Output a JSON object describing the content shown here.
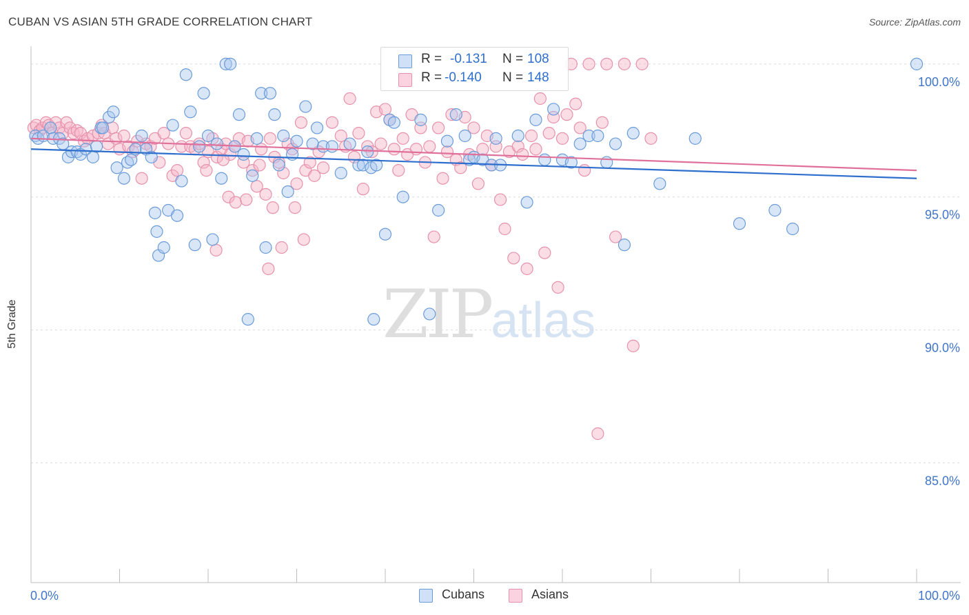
{
  "title": "CUBAN VS ASIAN 5TH GRADE CORRELATION CHART",
  "source": "Source: ZipAtlas.com",
  "legend_stats": [
    {
      "r_label": "R =",
      "r_value": "-0.131",
      "n_label": "N =",
      "n_value": "108",
      "color": "#a8c8f0"
    },
    {
      "r_label": "R =",
      "r_value": "-0.140",
      "n_label": "N =",
      "n_value": "148",
      "color": "#f7b3c8"
    }
  ],
  "watermark": {
    "zip": "ZIP",
    "atlas": "atlas"
  },
  "colors": {
    "cuban_fill": "#a8c8f0",
    "cuban_stroke": "#6a9bd8",
    "cuban_line": "#2e6fce",
    "asian_fill": "#f7b3c8",
    "asian_stroke": "#e691ab",
    "asian_line": "#e0709a",
    "axis_text": "#3f74c9",
    "grid": "#dcdcdc"
  },
  "chart_data": {
    "type": "scatter",
    "title": "CUBAN VS ASIAN 5TH GRADE CORRELATION CHART",
    "xlabel": "",
    "ylabel": "5th Grade",
    "xlim": [
      0,
      100
    ],
    "ylim": [
      80.5,
      100.8
    ],
    "x_tick_labels": [
      "0.0%",
      "100.0%"
    ],
    "y_ticks": [
      85,
      90,
      95,
      100
    ],
    "y_tick_labels": [
      "85.0%",
      "90.0%",
      "95.0%",
      "100.0%"
    ],
    "grid": true,
    "legend_position": "bottom-center",
    "series": [
      {
        "name": "Cubans",
        "trend": {
          "x": [
            0,
            100
          ],
          "y": [
            96.8,
            95.7
          ]
        },
        "points": [
          [
            0.5,
            97.3
          ],
          [
            0.8,
            97.2
          ],
          [
            1.4,
            97.3
          ],
          [
            2.2,
            97.6
          ],
          [
            2.5,
            97.2
          ],
          [
            3.2,
            97.2
          ],
          [
            3.6,
            97.0
          ],
          [
            4.2,
            96.5
          ],
          [
            4.6,
            96.7
          ],
          [
            5.2,
            96.7
          ],
          [
            5.6,
            96.6
          ],
          [
            6.2,
            96.8
          ],
          [
            7.0,
            96.5
          ],
          [
            7.4,
            96.9
          ],
          [
            7.9,
            97.6
          ],
          [
            8.1,
            97.6
          ],
          [
            8.8,
            98.0
          ],
          [
            9.3,
            98.2
          ],
          [
            9.7,
            96.1
          ],
          [
            10.5,
            95.7
          ],
          [
            10.9,
            96.3
          ],
          [
            11.3,
            96.4
          ],
          [
            11.8,
            96.8
          ],
          [
            12.5,
            97.3
          ],
          [
            13.0,
            96.8
          ],
          [
            13.6,
            96.5
          ],
          [
            14.0,
            94.4
          ],
          [
            14.2,
            93.7
          ],
          [
            14.4,
            92.8
          ],
          [
            15.0,
            93.1
          ],
          [
            15.5,
            94.5
          ],
          [
            16.0,
            97.7
          ],
          [
            16.5,
            94.3
          ],
          [
            17.0,
            95.6
          ],
          [
            17.5,
            99.6
          ],
          [
            18.0,
            98.2
          ],
          [
            18.5,
            93.2
          ],
          [
            19.0,
            96.9
          ],
          [
            19.5,
            98.9
          ],
          [
            20.0,
            97.3
          ],
          [
            20.5,
            93.4
          ],
          [
            21.0,
            97.0
          ],
          [
            21.5,
            95.7
          ],
          [
            22.0,
            100.0
          ],
          [
            22.5,
            100.0
          ],
          [
            23.0,
            96.9
          ],
          [
            23.5,
            98.1
          ],
          [
            24.0,
            96.6
          ],
          [
            24.5,
            90.4
          ],
          [
            25.0,
            95.8
          ],
          [
            25.5,
            97.2
          ],
          [
            26.0,
            98.9
          ],
          [
            26.5,
            93.1
          ],
          [
            27.0,
            98.9
          ],
          [
            27.5,
            98.1
          ],
          [
            28.0,
            96.2
          ],
          [
            28.5,
            97.3
          ],
          [
            29.0,
            95.2
          ],
          [
            29.5,
            96.6
          ],
          [
            30.0,
            97.1
          ],
          [
            31.0,
            98.4
          ],
          [
            31.8,
            97.0
          ],
          [
            32.3,
            97.6
          ],
          [
            33.0,
            96.9
          ],
          [
            34.0,
            96.9
          ],
          [
            35.0,
            95.9
          ],
          [
            36.0,
            97.0
          ],
          [
            37.0,
            96.2
          ],
          [
            37.5,
            96.2
          ],
          [
            38.0,
            96.7
          ],
          [
            38.4,
            96.1
          ],
          [
            38.7,
            90.4
          ],
          [
            39.0,
            96.2
          ],
          [
            40.0,
            93.6
          ],
          [
            40.5,
            97.9
          ],
          [
            41.0,
            97.8
          ],
          [
            42.0,
            95.0
          ],
          [
            44.0,
            97.9
          ],
          [
            45.0,
            90.6
          ],
          [
            46.0,
            94.5
          ],
          [
            47.0,
            97.1
          ],
          [
            48.0,
            98.1
          ],
          [
            49.0,
            97.3
          ],
          [
            49.5,
            96.4
          ],
          [
            50.0,
            96.5
          ],
          [
            51.0,
            96.4
          ],
          [
            52.0,
            96.2
          ],
          [
            52.5,
            97.2
          ],
          [
            53.0,
            96.2
          ],
          [
            55.0,
            97.3
          ],
          [
            56.0,
            94.8
          ],
          [
            57.0,
            97.9
          ],
          [
            58.0,
            96.4
          ],
          [
            59.0,
            98.3
          ],
          [
            60.0,
            96.4
          ],
          [
            61.0,
            96.3
          ],
          [
            62.0,
            97.0
          ],
          [
            63.0,
            97.3
          ],
          [
            64.0,
            97.3
          ],
          [
            65.0,
            96.3
          ],
          [
            66.0,
            97.0
          ],
          [
            67.0,
            93.2
          ],
          [
            68.0,
            97.4
          ],
          [
            71.0,
            95.5
          ],
          [
            75.0,
            97.2
          ],
          [
            80.0,
            94.0
          ],
          [
            84.0,
            94.5
          ],
          [
            86.0,
            93.8
          ],
          [
            100.0,
            100.0
          ]
        ]
      },
      {
        "name": "Asians",
        "trend": {
          "x": [
            0,
            100
          ],
          "y": [
            97.2,
            96.0
          ]
        },
        "points": [
          [
            0.3,
            97.6
          ],
          [
            0.6,
            97.7
          ],
          [
            1.0,
            97.5
          ],
          [
            1.3,
            97.6
          ],
          [
            1.7,
            97.8
          ],
          [
            2.0,
            97.7
          ],
          [
            2.4,
            97.4
          ],
          [
            2.8,
            97.8
          ],
          [
            3.2,
            97.6
          ],
          [
            3.6,
            97.4
          ],
          [
            4.0,
            97.8
          ],
          [
            4.4,
            97.6
          ],
          [
            4.8,
            97.4
          ],
          [
            5.2,
            97.5
          ],
          [
            5.6,
            97.4
          ],
          [
            6.0,
            97.1
          ],
          [
            6.4,
            97.2
          ],
          [
            7.0,
            97.3
          ],
          [
            7.6,
            97.4
          ],
          [
            8.0,
            97.7
          ],
          [
            8.3,
            97.4
          ],
          [
            8.7,
            97.0
          ],
          [
            9.2,
            97.6
          ],
          [
            9.6,
            97.2
          ],
          [
            10.0,
            96.8
          ],
          [
            10.5,
            97.3
          ],
          [
            11.0,
            96.9
          ],
          [
            11.5,
            96.7
          ],
          [
            12.0,
            97.1
          ],
          [
            12.5,
            95.7
          ],
          [
            13.0,
            97.0
          ],
          [
            13.5,
            96.9
          ],
          [
            14.0,
            97.2
          ],
          [
            14.5,
            96.3
          ],
          [
            15.0,
            97.4
          ],
          [
            15.5,
            97.0
          ],
          [
            16.0,
            95.8
          ],
          [
            16.5,
            96.0
          ],
          [
            17.0,
            96.9
          ],
          [
            17.5,
            97.4
          ],
          [
            18.0,
            96.9
          ],
          [
            18.5,
            96.8
          ],
          [
            19.0,
            97.0
          ],
          [
            19.5,
            96.3
          ],
          [
            20.0,
            96.7
          ],
          [
            20.5,
            97.2
          ],
          [
            21.0,
            96.5
          ],
          [
            21.5,
            96.8
          ],
          [
            22.0,
            97.0
          ],
          [
            22.5,
            96.6
          ],
          [
            23.0,
            96.9
          ],
          [
            23.5,
            97.2
          ],
          [
            24.0,
            96.3
          ],
          [
            24.5,
            97.1
          ],
          [
            25.0,
            96.0
          ],
          [
            25.5,
            95.4
          ],
          [
            26.0,
            96.8
          ],
          [
            26.5,
            95.1
          ],
          [
            27.0,
            97.2
          ],
          [
            27.5,
            96.5
          ],
          [
            28.0,
            96.3
          ],
          [
            28.5,
            95.9
          ],
          [
            29.0,
            97.0
          ],
          [
            29.5,
            96.8
          ],
          [
            30.0,
            95.5
          ],
          [
            30.5,
            97.8
          ],
          [
            31.0,
            96.0
          ],
          [
            31.5,
            96.3
          ],
          [
            32.0,
            95.8
          ],
          [
            32.5,
            96.7
          ],
          [
            33.0,
            96.1
          ],
          [
            34.0,
            97.8
          ],
          [
            35.0,
            97.3
          ],
          [
            35.5,
            96.9
          ],
          [
            36.0,
            98.7
          ],
          [
            36.5,
            96.5
          ],
          [
            37.0,
            97.4
          ],
          [
            37.5,
            95.3
          ],
          [
            38.0,
            96.9
          ],
          [
            38.5,
            96.7
          ],
          [
            39.0,
            98.2
          ],
          [
            39.5,
            97.0
          ],
          [
            40.0,
            98.3
          ],
          [
            40.5,
            97.9
          ],
          [
            41.0,
            96.8
          ],
          [
            41.5,
            96.0
          ],
          [
            42.0,
            97.2
          ],
          [
            42.5,
            96.6
          ],
          [
            43.0,
            98.1
          ],
          [
            43.5,
            96.8
          ],
          [
            44.0,
            97.6
          ],
          [
            44.5,
            96.3
          ],
          [
            45.0,
            96.9
          ],
          [
            45.5,
            93.5
          ],
          [
            46.0,
            97.6
          ],
          [
            46.5,
            95.7
          ],
          [
            47.0,
            96.7
          ],
          [
            47.5,
            98.1
          ],
          [
            48.0,
            96.4
          ],
          [
            48.5,
            96.1
          ],
          [
            49.0,
            98.0
          ],
          [
            49.5,
            96.6
          ],
          [
            50.0,
            97.6
          ],
          [
            50.5,
            95.5
          ],
          [
            51.0,
            96.8
          ],
          [
            51.5,
            97.3
          ],
          [
            52.0,
            96.2
          ],
          [
            52.5,
            96.9
          ],
          [
            53.0,
            94.9
          ],
          [
            53.5,
            93.8
          ],
          [
            54.0,
            96.7
          ],
          [
            54.5,
            92.7
          ],
          [
            55.0,
            96.9
          ],
          [
            55.5,
            96.6
          ],
          [
            56.0,
            92.3
          ],
          [
            56.5,
            97.3
          ],
          [
            57.0,
            96.8
          ],
          [
            57.5,
            98.7
          ],
          [
            58.0,
            92.9
          ],
          [
            58.5,
            97.4
          ],
          [
            59.0,
            98.0
          ],
          [
            59.5,
            91.6
          ],
          [
            60.0,
            97.2
          ],
          [
            60.5,
            98.1
          ],
          [
            61.0,
            100.0
          ],
          [
            61.5,
            98.5
          ],
          [
            62.0,
            97.6
          ],
          [
            62.5,
            96.0
          ],
          [
            63.0,
            100.0
          ],
          [
            64.0,
            86.1
          ],
          [
            64.5,
            97.8
          ],
          [
            65.0,
            100.0
          ],
          [
            66.0,
            93.5
          ],
          [
            67.0,
            100.0
          ],
          [
            68.0,
            89.4
          ],
          [
            69.0,
            100.0
          ],
          [
            70.0,
            97.2
          ],
          [
            25.8,
            96.2
          ],
          [
            29.8,
            94.6
          ],
          [
            22.3,
            95.0
          ],
          [
            19.8,
            96.0
          ],
          [
            23.1,
            94.8
          ],
          [
            20.9,
            93.0
          ],
          [
            26.8,
            92.3
          ],
          [
            28.3,
            93.1
          ],
          [
            30.8,
            93.4
          ],
          [
            24.3,
            94.9
          ],
          [
            27.3,
            94.6
          ],
          [
            21.7,
            96.4
          ]
        ]
      }
    ]
  },
  "bottom_legend": [
    {
      "label": "Cubans",
      "color": "#a8c8f0"
    },
    {
      "label": "Asians",
      "color": "#f7b3c8"
    }
  ]
}
